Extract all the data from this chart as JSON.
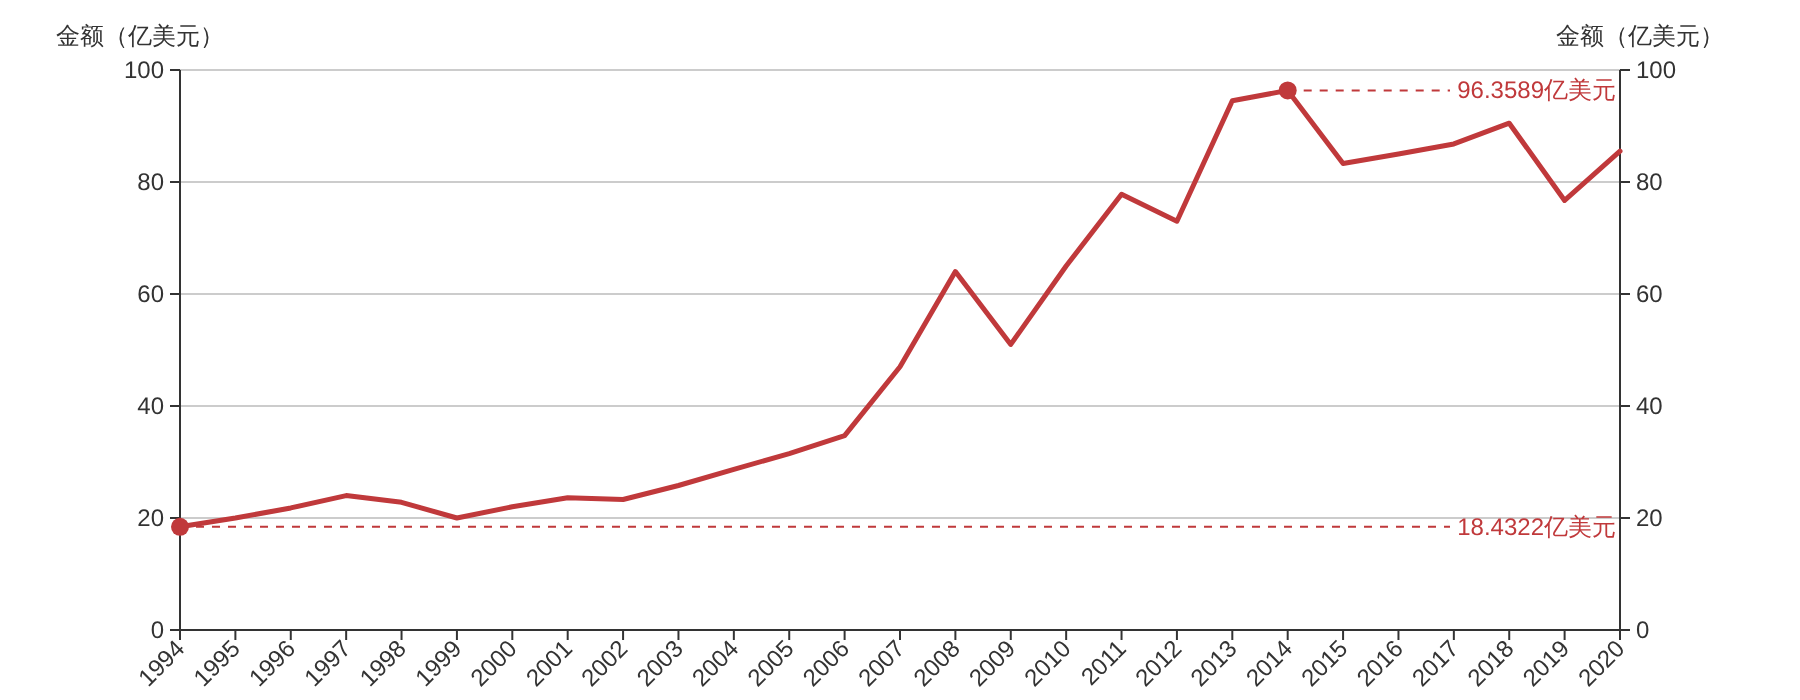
{
  "chart_data": {
    "type": "line",
    "ylabel": "金额（亿美元）",
    "y2label": "金额（亿美元）",
    "categories": [
      "1994",
      "1995",
      "1996",
      "1997",
      "1998",
      "1999",
      "2000",
      "2001",
      "2002",
      "2003",
      "2004",
      "2005",
      "2006",
      "2007",
      "2008",
      "2009",
      "2010",
      "2011",
      "2012",
      "2013",
      "2014",
      "2015",
      "2016",
      "2017",
      "2018",
      "2019",
      "2020"
    ],
    "series": [
      {
        "color": "#c0393b",
        "values": [
          18.4322,
          20,
          21.8,
          24,
          22.8,
          20,
          22,
          23.6,
          23.3,
          25.8,
          28.7,
          31.5,
          34.7,
          47,
          64,
          51,
          65,
          77.8,
          73,
          94.5,
          96.3589,
          83.3,
          85,
          86.8,
          90.5,
          76.7,
          85.5
        ]
      }
    ],
    "ylim": [
      0,
      100
    ],
    "yticks": [
      0,
      20,
      40,
      60,
      80,
      100
    ],
    "y2lim": [
      0,
      100
    ],
    "y2ticks": [
      0,
      20,
      40,
      60,
      80,
      100
    ],
    "ref_lines": [
      {
        "axis": "y",
        "value": 96.3589,
        "label": "96.3589亿美元",
        "color": "#c0393b",
        "line_style": "dashed"
      },
      {
        "axis": "y",
        "value": 18.4322,
        "label": "18.4322亿美元",
        "color": "#c0393b",
        "line_style": "dashed"
      }
    ],
    "grid": "y",
    "marker": "none",
    "line_style": "solid"
  }
}
